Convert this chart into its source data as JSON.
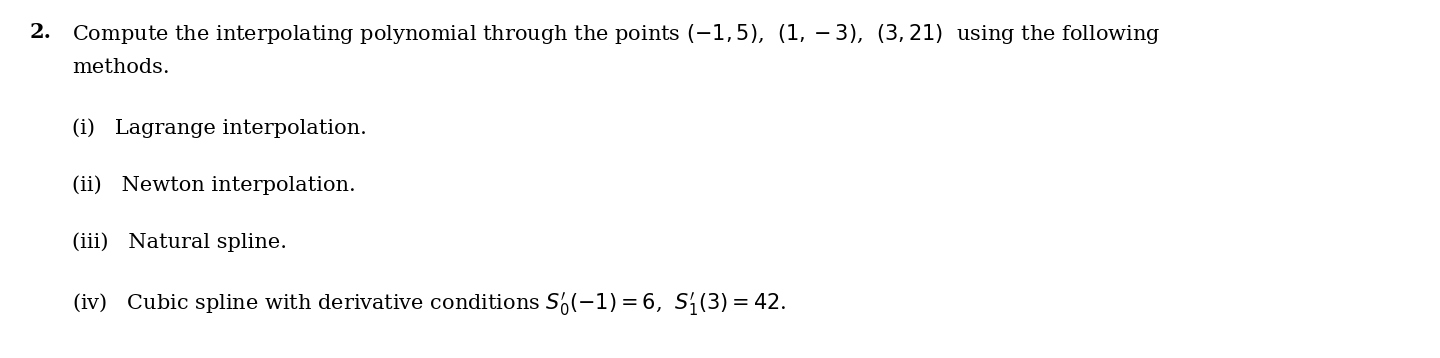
{
  "background_color": "#ffffff",
  "figsize": [
    14.4,
    3.58
  ],
  "dpi": 100,
  "main_line1": "Compute the interpolating polynomial through the points $(-1, 5)$,  $(1, -3)$,  $(3, 21)$  using the following",
  "main_line2": "methods.",
  "item_i": "(i)   Lagrange interpolation.",
  "item_ii": "(ii)   Newton interpolation.",
  "item_iii": "(iii)   Natural spline.",
  "item_iv": "(iv)   Cubic spline with derivative conditions $S_0^{\\prime}(-1) = 6$,  $S_1^{\\prime}(3) = 42$.",
  "number": "2.",
  "fontsize": 15.0,
  "fontsize_bold": 15.0,
  "text_color": "#000000"
}
